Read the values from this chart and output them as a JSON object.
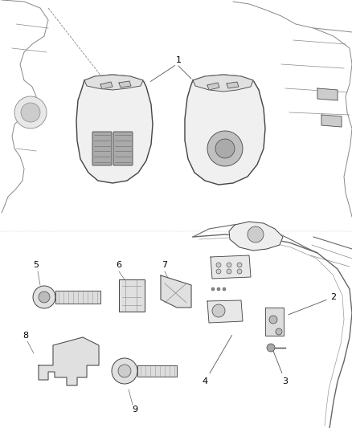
{
  "background_color": "#ffffff",
  "fig_width": 4.38,
  "fig_height": 5.33,
  "dpi": 100,
  "line_color": "#000000",
  "label_fontsize": 8,
  "gray_dark": "#444444",
  "gray_mid": "#888888",
  "gray_light": "#cccccc",
  "gray_fill": "#f0f0f0",
  "gray_mid_fill": "#dddddd"
}
